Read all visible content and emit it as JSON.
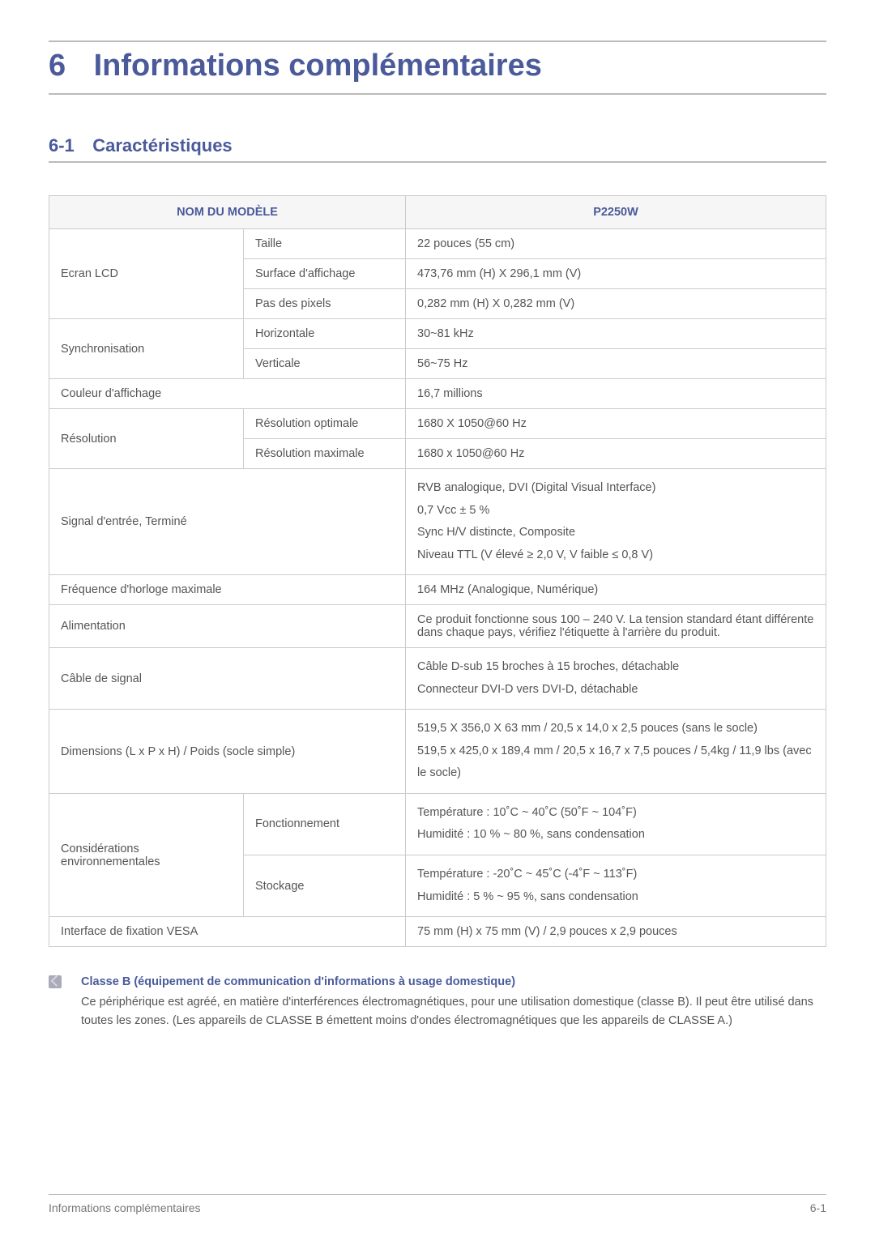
{
  "chapter": {
    "num": "6",
    "title": "Informations complémentaires"
  },
  "section": {
    "num": "6-1",
    "title": "Caractéristiques"
  },
  "table": {
    "headers": {
      "model_name": "NOM DU MODÈLE",
      "model_value": "P2250W"
    },
    "rows": {
      "lcd": {
        "label": "Ecran LCD",
        "size_label": "Taille",
        "size_val": "22 pouces (55 cm)",
        "area_label": "Surface d'affichage",
        "area_val": "473,76 mm (H) X 296,1 mm (V)",
        "pitch_label": "Pas des pixels",
        "pitch_val": "0,282 mm (H) X 0,282 mm (V)"
      },
      "sync": {
        "label": "Synchronisation",
        "h_label": "Horizontale",
        "h_val": "30~81 kHz",
        "v_label": "Verticale",
        "v_val": "56~75 Hz"
      },
      "color": {
        "label": "Couleur d'affichage",
        "val": "16,7 millions"
      },
      "res": {
        "label": "Résolution",
        "opt_label": "Résolution optimale",
        "opt_val": "1680 X 1050@60 Hz",
        "max_label": "Résolution maximale",
        "max_val": "1680 x 1050@60 Hz"
      },
      "signal": {
        "label": "Signal d'entrée, Terminé",
        "l1": "RVB analogique, DVI (Digital Visual Interface)",
        "l2": "0,7 Vcc ± 5 %",
        "l3": "Sync H/V distincte, Composite",
        "l4": "Niveau TTL (V élevé ≥ 2,0 V, V faible ≤ 0,8 V)"
      },
      "clock": {
        "label": "Fréquence d'horloge maximale",
        "val": "164 MHz (Analogique, Numérique)"
      },
      "power": {
        "label": "Alimentation",
        "val": "Ce produit fonctionne sous 100 – 240 V. La tension standard étant différente dans chaque pays, vérifiez l'étiquette à l'arrière du produit."
      },
      "cable": {
        "label": "Câble de signal",
        "l1": "Câble D-sub 15 broches à 15 broches, détachable",
        "l2": "Connecteur DVI-D vers DVI-D, détachable"
      },
      "dim": {
        "label": "Dimensions (L x P x H) / Poids (socle simple)",
        "l1": "519,5 X 356,0 X 63 mm / 20,5 x 14,0 x 2,5 pouces (sans le socle)",
        "l2": "519,5 x 425,0 x 189,4 mm / 20,5 x 16,7 x 7,5 pouces / 5,4kg / 11,9 lbs (avec le socle)"
      },
      "env": {
        "label": "Considérations environnementales",
        "op_label": "Fonctionnement",
        "op_l1": "Température : 10˚C ~ 40˚C (50˚F ~ 104˚F)",
        "op_l2": "Humidité : 10 % ~ 80 %, sans condensation",
        "st_label": "Stockage",
        "st_l1": "Température : -20˚C ~ 45˚C (-4˚F ~ 113˚F)",
        "st_l2": "Humidité : 5 % ~ 95 %, sans condensation"
      },
      "vesa": {
        "label": "Interface de fixation VESA",
        "val": "75 mm (H) x 75 mm (V) / 2,9 pouces x 2,9 pouces"
      }
    }
  },
  "note": {
    "title": "Classe B (équipement de communication d'informations à usage domestique)",
    "body": "Ce périphérique est agréé, en matière d'interférences électromagnétiques, pour une utilisation domestique (classe B). Il peut être utilisé dans toutes les zones. (Les appareils de CLASSE B émettent moins d'ondes électromagnétiques que les appareils de CLASSE A.)"
  },
  "footer": {
    "left": "Informations complémentaires",
    "right": "6-1"
  }
}
